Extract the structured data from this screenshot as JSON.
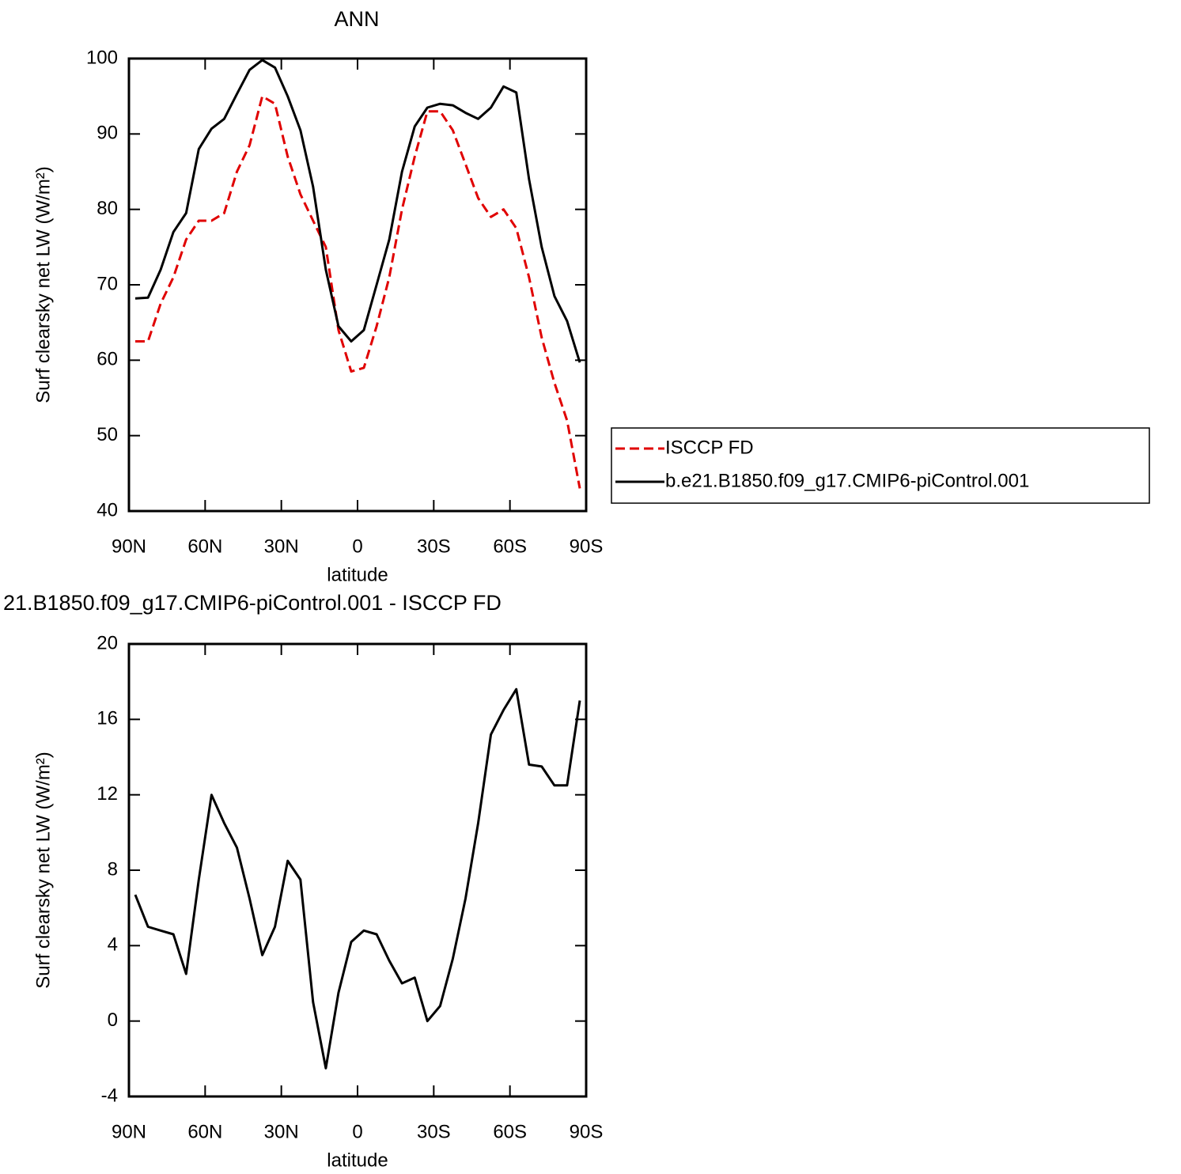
{
  "chart_data": [
    {
      "type": "line",
      "title": "ANN",
      "xlabel": "latitude",
      "ylabel": "Surf clearsky net LW (W/m²)",
      "x": [
        87.5,
        82.5,
        77.5,
        72.5,
        67.5,
        62.5,
        57.5,
        52.5,
        47.5,
        42.5,
        37.5,
        32.5,
        27.5,
        22.5,
        17.5,
        12.5,
        7.5,
        2.5,
        -2.5,
        -7.5,
        -12.5,
        -17.5,
        -22.5,
        -27.5,
        -32.5,
        -37.5,
        -42.5,
        -47.5,
        -52.5,
        -57.5,
        -62.5,
        -67.5,
        -72.5,
        -77.5,
        -82.5,
        -87.5
      ],
      "series": [
        {
          "name": "ISCCP FD",
          "color": "#e00000",
          "style": "dashed",
          "values": [
            62.5,
            62.5,
            67.5,
            71,
            76,
            78.5,
            78.5,
            79.5,
            85,
            88.5,
            95,
            94,
            87,
            82,
            78.5,
            75,
            64,
            58.5,
            59,
            64.5,
            71,
            80,
            87,
            93,
            93,
            90.5,
            86,
            81.5,
            79,
            80,
            77.5,
            71,
            63,
            57,
            52,
            43
          ]
        },
        {
          "name": "b.e21.B1850.f09_g17.CMIP6-piControl.001",
          "color": "#000000",
          "style": "solid",
          "values": [
            68.2,
            68.3,
            72,
            77,
            79.5,
            88,
            90.7,
            92,
            95.3,
            98.5,
            99.8,
            98.8,
            95,
            90.5,
            83,
            72,
            64.5,
            62.5,
            64,
            70,
            76,
            85,
            91,
            93.5,
            94,
            93.8,
            92.8,
            92,
            93.5,
            96.3,
            95.5,
            84,
            75,
            68.5,
            65.2,
            59.7
          ]
        }
      ],
      "xlim": [
        90,
        -90
      ],
      "xticks": [
        {
          "value": 90,
          "label": "90N"
        },
        {
          "value": 60,
          "label": "60N"
        },
        {
          "value": 30,
          "label": "30N"
        },
        0,
        {
          "value": -30,
          "label": "30S"
        },
        {
          "value": -60,
          "label": "60S"
        },
        {
          "value": -90,
          "label": "90S"
        }
      ],
      "ylim": [
        40,
        100
      ],
      "yticks": [
        40,
        50,
        60,
        70,
        80,
        90,
        100
      ],
      "legend": "right"
    },
    {
      "type": "line",
      "title": "21.B1850.f09_g17.CMIP6-piControl.001 - ISCCP FD",
      "xlabel": "latitude",
      "ylabel": "Surf clearsky net LW (W/m²)",
      "x": [
        87.5,
        82.5,
        77.5,
        72.5,
        67.5,
        62.5,
        57.5,
        52.5,
        47.5,
        42.5,
        37.5,
        32.5,
        27.5,
        22.5,
        17.5,
        12.5,
        7.5,
        2.5,
        -2.5,
        -7.5,
        -12.5,
        -17.5,
        -22.5,
        -27.5,
        -32.5,
        -37.5,
        -42.5,
        -47.5,
        -52.5,
        -57.5,
        -62.5,
        -67.5,
        -72.5,
        -77.5,
        -82.5,
        -87.5
      ],
      "series": [
        {
          "color": "#000000",
          "style": "solid",
          "values": [
            6.7,
            5,
            4.8,
            4.6,
            2.5,
            7.5,
            12,
            10.5,
            9.2,
            6.5,
            3.5,
            5,
            8.5,
            7.5,
            1,
            -2.5,
            1.5,
            4.2,
            4.8,
            4.6,
            3.2,
            2,
            2.3,
            0,
            0.8,
            3.3,
            6.5,
            10.5,
            15.2,
            16.5,
            17.6,
            13.6,
            13.5,
            12.5,
            12.5,
            17
          ]
        }
      ],
      "xlim": [
        90,
        -90
      ],
      "xticks": [
        {
          "value": 90,
          "label": "90N"
        },
        {
          "value": 60,
          "label": "60N"
        },
        {
          "value": 30,
          "label": "30N"
        },
        0,
        {
          "value": -30,
          "label": "30S"
        },
        {
          "value": -60,
          "label": "60S"
        },
        {
          "value": -90,
          "label": "90S"
        }
      ],
      "ylim": [
        -4,
        20
      ],
      "yticks": [
        -4,
        0,
        4,
        8,
        12,
        16,
        20
      ]
    }
  ]
}
